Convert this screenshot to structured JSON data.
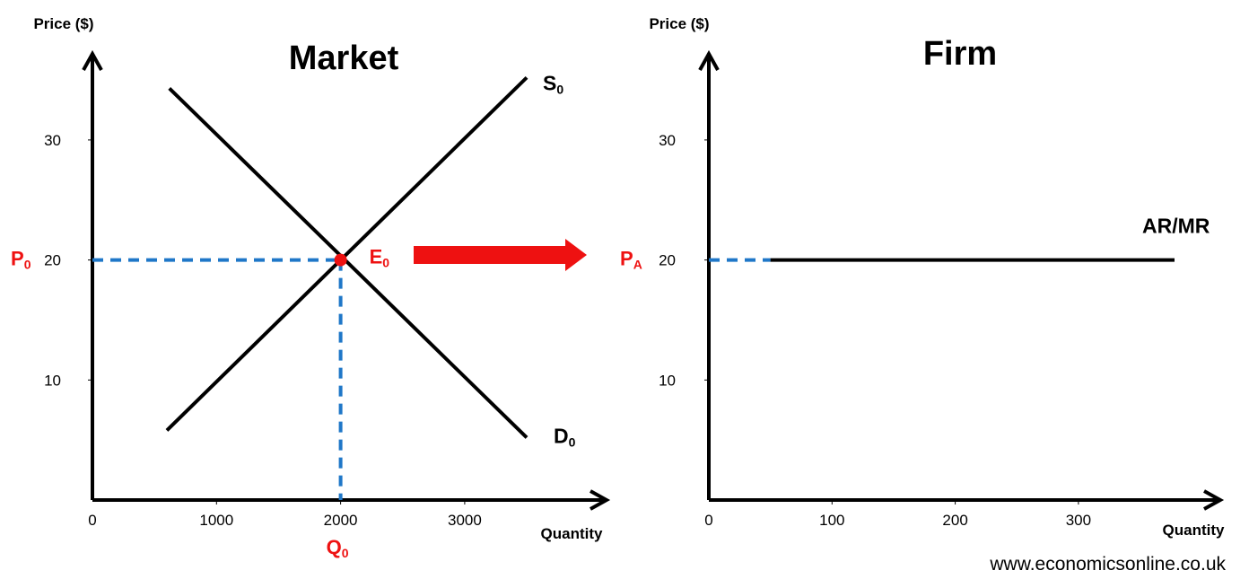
{
  "colors": {
    "accent": "#ee1111",
    "guide": "#1f77c8",
    "line": "#000000"
  },
  "footer": {
    "url": "www.economicsonline.co.uk"
  },
  "chart_data": [
    {
      "type": "line",
      "title": "Market",
      "ylabel": "Price ($)",
      "xlabel": "Quantity",
      "xlim": [
        0,
        4000
      ],
      "ylim": [
        0,
        40
      ],
      "x_ticks": [
        0,
        1000,
        2000,
        3000
      ],
      "y_ticks": [
        10,
        20,
        30
      ],
      "series": [
        {
          "name": "S",
          "subscript": "0",
          "points": [
            [
              600,
              5.8
            ],
            [
              3500,
              35.2
            ]
          ]
        },
        {
          "name": "D",
          "subscript": "0",
          "points": [
            [
              620,
              34.3
            ],
            [
              3500,
              5.2
            ]
          ]
        }
      ],
      "equilibrium": {
        "label": "E",
        "subscript": "0",
        "x": 2000,
        "y": 20
      },
      "guides": {
        "price_label": "P",
        "price_subscript": "0",
        "quantity_label": "Q",
        "quantity_subscript": "0"
      },
      "arrow": {
        "direction": "right"
      }
    },
    {
      "type": "line",
      "title": "Firm",
      "ylabel": "Price ($)",
      "xlabel": "Quantity",
      "xlim": [
        0,
        400
      ],
      "ylim": [
        0,
        40
      ],
      "x_ticks": [
        0,
        100,
        200,
        300
      ],
      "y_ticks": [
        10,
        20,
        30
      ],
      "series": [
        {
          "name": "AR/MR",
          "points": [
            [
              50,
              20
            ],
            [
              378,
              20
            ]
          ]
        }
      ],
      "guides": {
        "price_label": "P",
        "price_subscript": "A",
        "dashed_to_x": 50,
        "y": 20
      }
    }
  ]
}
